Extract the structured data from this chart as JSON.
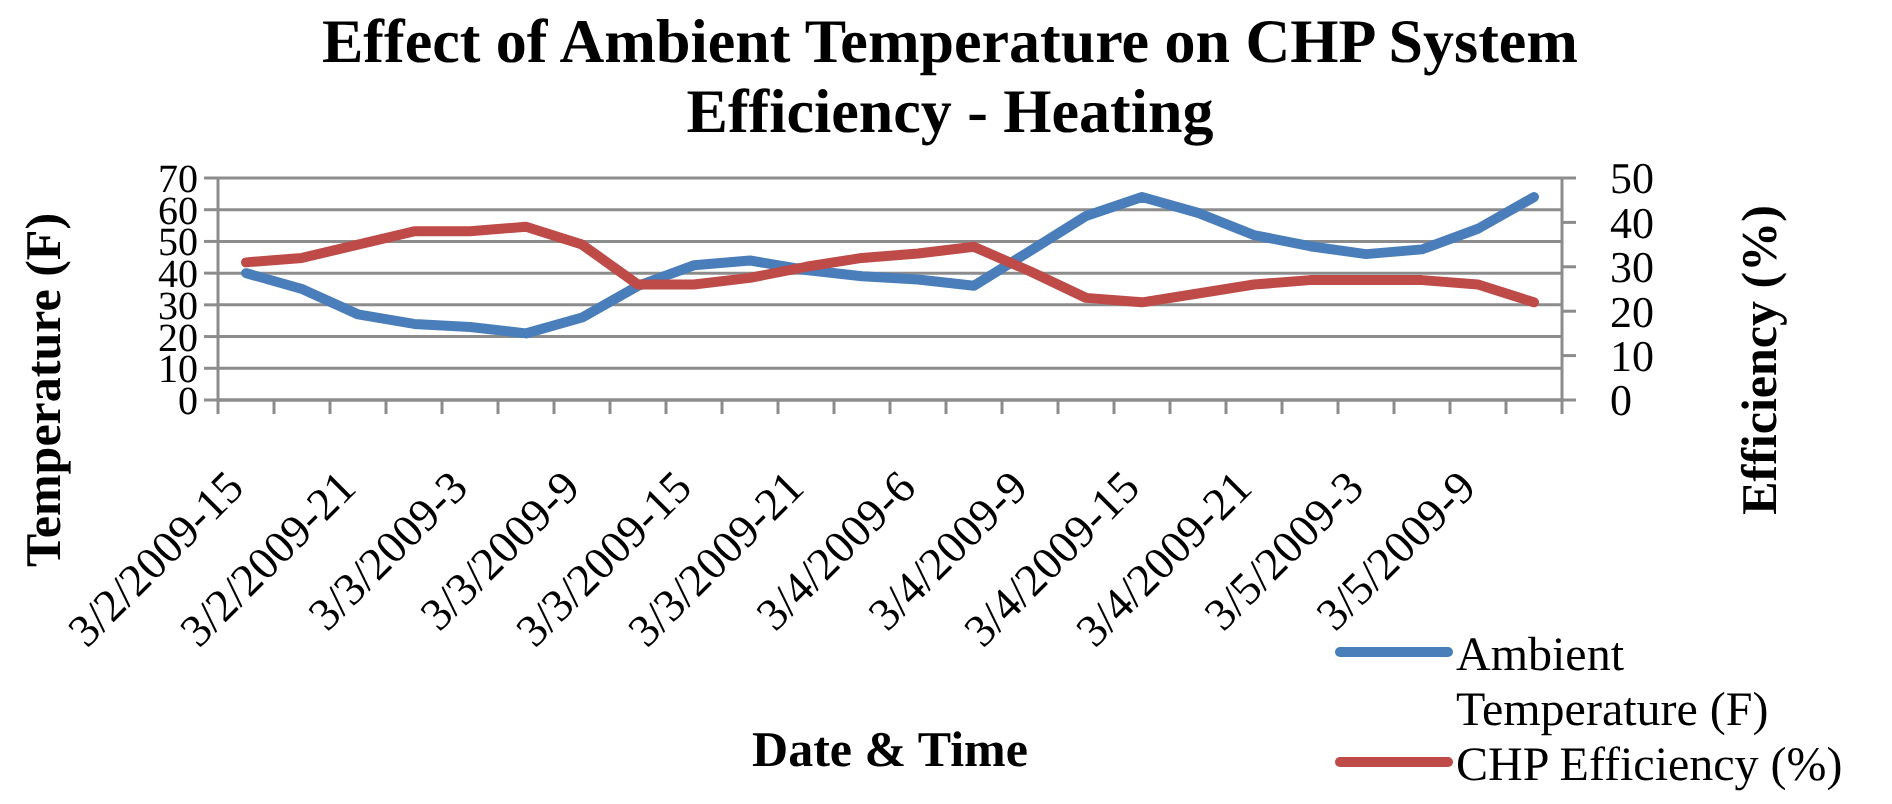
{
  "chart_data": {
    "type": "line",
    "title": "Effect of Ambient Temperature on CHP System Efficiency - Heating",
    "xlabel": "Date & Time",
    "ylabel": "Temperature (F)",
    "y2label": "Efficiency (%)",
    "categories": [
      "3/2/2009-15",
      null,
      "3/2/2009-21",
      null,
      "3/3/2009-3",
      null,
      "3/3/2009-9",
      null,
      "3/3/2009-15",
      null,
      "3/3/2009-21",
      null,
      "3/4/2009-6",
      null,
      "3/4/2009-9",
      null,
      "3/4/2009-15",
      null,
      "3/4/2009-21",
      null,
      "3/5/2009-3",
      null,
      "3/5/2009-9",
      null
    ],
    "series": [
      {
        "name": "Ambient Temperature (F)",
        "color": "#4a7ebb",
        "values": [
          40,
          35,
          27,
          24,
          23,
          21,
          26,
          36,
          42.5,
          44,
          41,
          39,
          38,
          36,
          47,
          58,
          64,
          59,
          52,
          48.5,
          46,
          47.5,
          54,
          64
        ]
      },
      {
        "name": "CHP Efficiency (%)",
        "color": "#be4b48",
        "axis": "y2",
        "values": [
          31,
          32,
          35,
          38,
          38,
          39,
          35,
          26,
          26,
          27.5,
          30,
          32,
          33,
          34.5,
          29,
          23,
          22,
          24,
          26,
          27,
          27,
          27,
          26,
          22
        ]
      }
    ],
    "ylim": [
      0,
      70
    ],
    "yticks": [
      0,
      10,
      20,
      30,
      40,
      50,
      60,
      70
    ],
    "y2lim": [
      0,
      50
    ],
    "y2ticks": [
      0,
      10,
      20,
      30,
      40,
      50
    ],
    "grid": "y",
    "legend": "bottom right"
  }
}
